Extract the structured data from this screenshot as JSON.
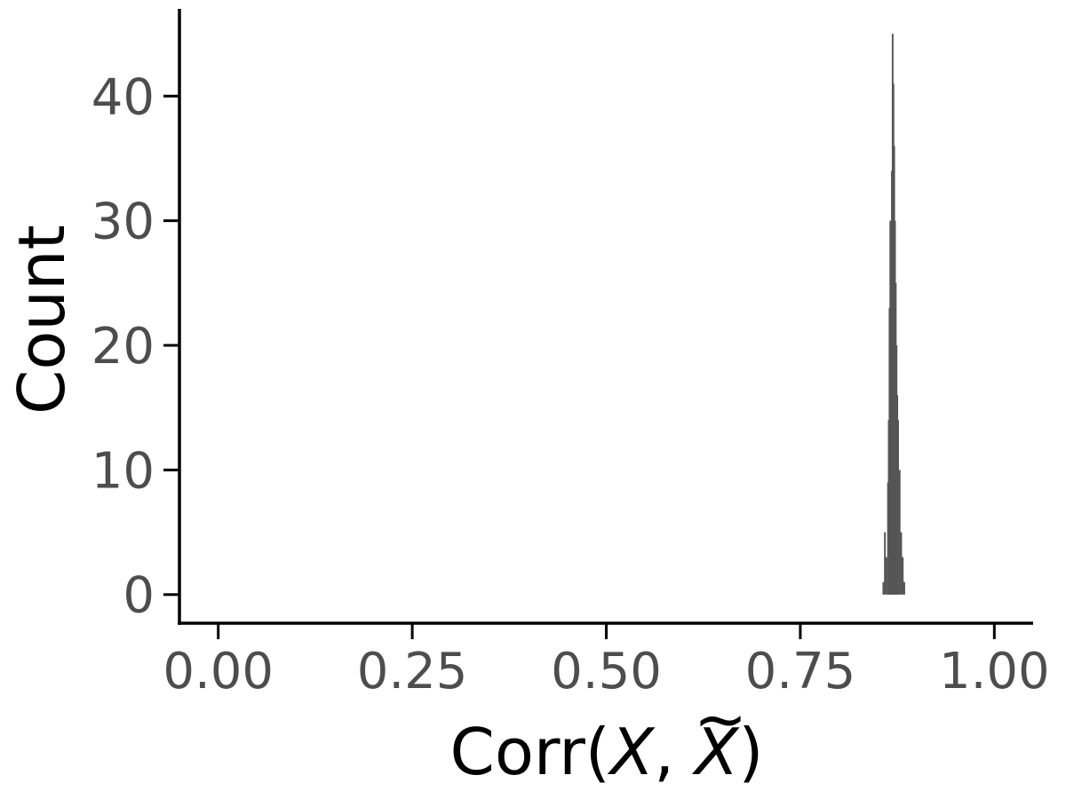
{
  "chart_data": {
    "type": "bar",
    "title": "",
    "xlabel": {
      "prefix": "Corr(",
      "var1": "X",
      "sep": ", ",
      "var2": "X",
      "var2_accent": "~",
      "suffix": ")"
    },
    "ylabel": "Count",
    "xlim": [
      -0.05,
      1.05
    ],
    "ylim": [
      -2.3,
      47
    ],
    "xticks": [
      0.0,
      0.25,
      0.5,
      0.75,
      1.0
    ],
    "xtick_labels": [
      "0.00",
      "0.25",
      "0.50",
      "0.75",
      "1.00"
    ],
    "yticks": [
      0,
      10,
      20,
      30,
      40
    ],
    "ytick_labels": [
      "0",
      "10",
      "20",
      "30",
      "40"
    ],
    "grid": false,
    "bar_color": "#555555",
    "axis_color": "#000000",
    "bins": [
      {
        "x": 0.857,
        "count": 1
      },
      {
        "x": 0.859,
        "count": 5
      },
      {
        "x": 0.861,
        "count": 3
      },
      {
        "x": 0.863,
        "count": 9
      },
      {
        "x": 0.864,
        "count": 14
      },
      {
        "x": 0.865,
        "count": 23
      },
      {
        "x": 0.866,
        "count": 30
      },
      {
        "x": 0.867,
        "count": 28
      },
      {
        "x": 0.868,
        "count": 34
      },
      {
        "x": 0.869,
        "count": 45
      },
      {
        "x": 0.87,
        "count": 41
      },
      {
        "x": 0.871,
        "count": 36
      },
      {
        "x": 0.872,
        "count": 30
      },
      {
        "x": 0.873,
        "count": 25
      },
      {
        "x": 0.874,
        "count": 20
      },
      {
        "x": 0.875,
        "count": 16
      },
      {
        "x": 0.876,
        "count": 14
      },
      {
        "x": 0.878,
        "count": 10
      },
      {
        "x": 0.88,
        "count": 5
      },
      {
        "x": 0.882,
        "count": 3
      },
      {
        "x": 0.884,
        "count": 1
      }
    ]
  }
}
